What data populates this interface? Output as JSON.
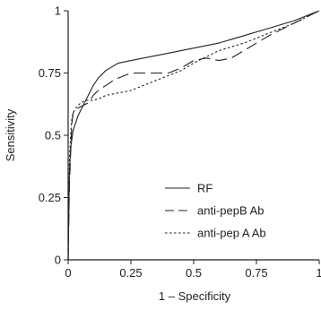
{
  "chart_data": {
    "type": "line",
    "title": "",
    "xlabel": "1 – Specificity",
    "ylabel": "Sensitivity",
    "xlim": [
      0,
      1
    ],
    "ylim": [
      0,
      1
    ],
    "x_ticks": [
      "0",
      "0.25",
      "0.5",
      "0.75",
      "1"
    ],
    "y_ticks": [
      "0",
      "0.25",
      "0.5",
      "0.75",
      "1"
    ],
    "grid": false,
    "legend_position": "bottom-center",
    "series": [
      {
        "name": "RF",
        "dash": "solid",
        "x": [
          0,
          0.005,
          0.01,
          0.02,
          0.04,
          0.06,
          0.08,
          0.1,
          0.12,
          0.15,
          0.2,
          0.3,
          0.4,
          0.5,
          0.6,
          0.7,
          0.8,
          0.9,
          1.0
        ],
        "y": [
          0,
          0.35,
          0.45,
          0.52,
          0.58,
          0.62,
          0.66,
          0.7,
          0.73,
          0.76,
          0.79,
          0.81,
          0.83,
          0.85,
          0.87,
          0.9,
          0.93,
          0.96,
          1.0
        ]
      },
      {
        "name": "anti-pepB Ab",
        "dash": "long-dash",
        "x": [
          0,
          0.005,
          0.01,
          0.015,
          0.02,
          0.04,
          0.06,
          0.08,
          0.1,
          0.12,
          0.15,
          0.18,
          0.2,
          0.25,
          0.3,
          0.35,
          0.4,
          0.45,
          0.5,
          0.55,
          0.6,
          0.65,
          0.7,
          0.8,
          0.9,
          1.0
        ],
        "y": [
          0,
          0.3,
          0.43,
          0.55,
          0.59,
          0.61,
          0.62,
          0.63,
          0.66,
          0.68,
          0.7,
          0.72,
          0.73,
          0.75,
          0.75,
          0.75,
          0.75,
          0.77,
          0.8,
          0.81,
          0.8,
          0.81,
          0.84,
          0.9,
          0.95,
          1.0
        ]
      },
      {
        "name": "anti-pep A Ab",
        "dash": "dotted",
        "x": [
          0,
          0.005,
          0.01,
          0.015,
          0.02,
          0.03,
          0.05,
          0.07,
          0.1,
          0.13,
          0.15,
          0.2,
          0.25,
          0.3,
          0.35,
          0.4,
          0.45,
          0.5,
          0.6,
          0.7,
          0.8,
          0.9,
          1.0
        ],
        "y": [
          0,
          0.4,
          0.5,
          0.57,
          0.59,
          0.61,
          0.63,
          0.64,
          0.64,
          0.65,
          0.66,
          0.67,
          0.68,
          0.7,
          0.72,
          0.74,
          0.76,
          0.79,
          0.84,
          0.87,
          0.91,
          0.95,
          1.0
        ]
      }
    ]
  }
}
